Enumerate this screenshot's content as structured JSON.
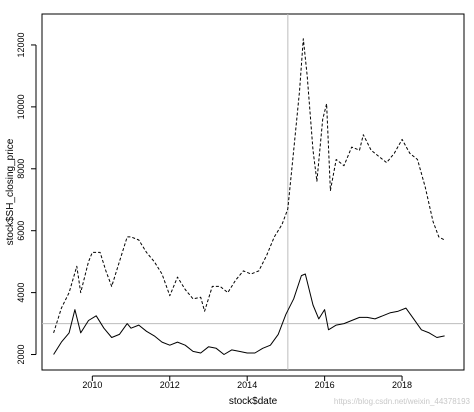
{
  "chart_data": {
    "type": "line",
    "xlabel": "stock$date",
    "ylabel": "stock$SH_closing_price",
    "xlim": [
      2008.7,
      2019.6
    ],
    "ylim": [
      1500,
      13000
    ],
    "x_ticks": [
      2010,
      2012,
      2014,
      2016,
      2018
    ],
    "x_tick_labels": [
      "2010",
      "2012",
      "2014",
      "2016",
      "2018"
    ],
    "y_ticks": [
      2000,
      4000,
      6000,
      8000,
      10000,
      12000
    ],
    "y_tick_labels": [
      "2000",
      "4000",
      "6000",
      "8000",
      "10000",
      "12000"
    ],
    "reference_lines": {
      "vertical_x": 2015.05,
      "horizontal_y": 3000
    },
    "grid": false,
    "legend": "none",
    "series": [
      {
        "style": "solid",
        "color": "#000000",
        "x": [
          2009.0,
          2009.2,
          2009.4,
          2009.55,
          2009.7,
          2009.9,
          2010.1,
          2010.3,
          2010.5,
          2010.7,
          2010.9,
          2011.0,
          2011.2,
          2011.4,
          2011.6,
          2011.8,
          2012.0,
          2012.2,
          2012.4,
          2012.6,
          2012.8,
          2013.0,
          2013.2,
          2013.4,
          2013.6,
          2013.8,
          2014.0,
          2014.2,
          2014.4,
          2014.6,
          2014.8,
          2015.0,
          2015.2,
          2015.4,
          2015.5,
          2015.7,
          2015.85,
          2016.0,
          2016.1,
          2016.3,
          2016.5,
          2016.7,
          2016.9,
          2017.1,
          2017.3,
          2017.5,
          2017.7,
          2017.9,
          2018.1,
          2018.3,
          2018.5,
          2018.7,
          2018.9,
          2019.1
        ],
        "y": [
          2000,
          2400,
          2700,
          3450,
          2700,
          3100,
          3250,
          2850,
          2550,
          2650,
          3000,
          2850,
          2950,
          2750,
          2600,
          2400,
          2300,
          2400,
          2300,
          2100,
          2050,
          2250,
          2200,
          2000,
          2150,
          2100,
          2050,
          2050,
          2200,
          2300,
          2650,
          3300,
          3800,
          4550,
          4600,
          3600,
          3150,
          3450,
          2800,
          2950,
          3000,
          3100,
          3200,
          3200,
          3150,
          3250,
          3350,
          3400,
          3500,
          3150,
          2800,
          2700,
          2550,
          2600
        ]
      },
      {
        "style": "dashed",
        "color": "#000000",
        "x": [
          2009.0,
          2009.2,
          2009.4,
          2009.6,
          2009.7,
          2009.9,
          2010.0,
          2010.2,
          2010.35,
          2010.5,
          2010.7,
          2010.9,
          2011.0,
          2011.2,
          2011.4,
          2011.6,
          2011.8,
          2012.0,
          2012.2,
          2012.4,
          2012.6,
          2012.8,
          2012.9,
          2013.1,
          2013.3,
          2013.5,
          2013.7,
          2013.9,
          2014.1,
          2014.3,
          2014.5,
          2014.7,
          2014.9,
          2015.05,
          2015.2,
          2015.35,
          2015.45,
          2015.55,
          2015.7,
          2015.8,
          2015.95,
          2016.05,
          2016.15,
          2016.3,
          2016.5,
          2016.7,
          2016.9,
          2017.0,
          2017.2,
          2017.4,
          2017.6,
          2017.8,
          2018.0,
          2018.2,
          2018.4,
          2018.6,
          2018.8,
          2018.95,
          2019.1
        ],
        "y": [
          2700,
          3500,
          4000,
          4850,
          4000,
          5000,
          5300,
          5300,
          4700,
          4200,
          5000,
          5800,
          5800,
          5700,
          5300,
          5000,
          4600,
          3900,
          4500,
          4100,
          3800,
          3850,
          3400,
          4200,
          4200,
          4000,
          4400,
          4700,
          4600,
          4700,
          5200,
          5800,
          6200,
          6700,
          8600,
          10500,
          12200,
          11000,
          8600,
          7600,
          9600,
          10100,
          7300,
          8300,
          8100,
          8700,
          8600,
          9100,
          8600,
          8400,
          8200,
          8500,
          8950,
          8500,
          8300,
          7400,
          6300,
          5800,
          5700
        ]
      }
    ]
  },
  "watermark": "https://blog.csdn.net/weixin_44378193"
}
